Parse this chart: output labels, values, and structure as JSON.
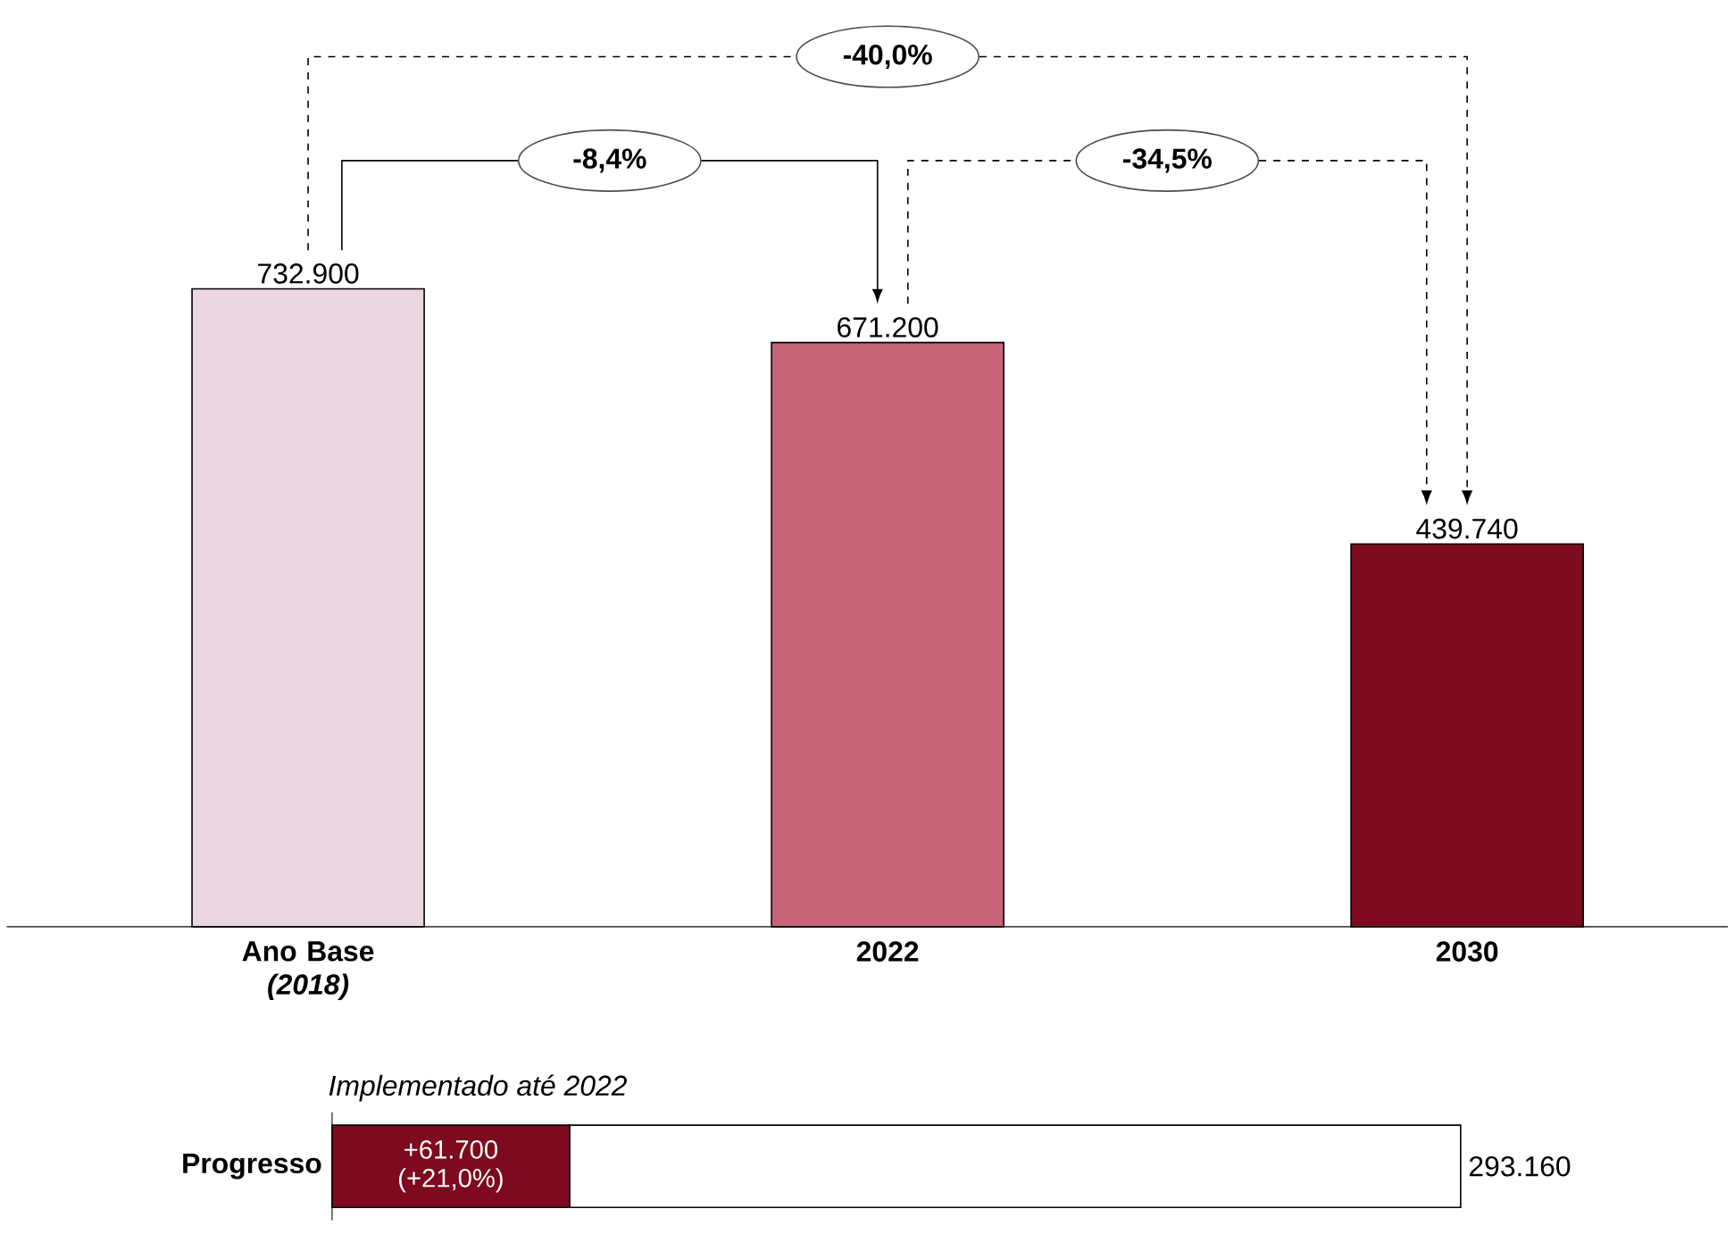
{
  "chart_data": [
    {
      "type": "bar",
      "categories": [
        "Ano Base *(2018)*",
        "2022",
        "2030"
      ],
      "values": [
        732900,
        671200,
        439740
      ],
      "colors": [
        "#ead5e0",
        "#c76478",
        "#7d0a1e"
      ],
      "value_labels": [
        "732.900",
        "671.200",
        "439.740"
      ],
      "tick_labels": "x",
      "annotations": [
        "-8,4%",
        "-34,5%",
        "-40,0%"
      ]
    },
    {
      "type": "bar",
      "orientation": "horizontal",
      "stacked": true,
      "categories": [
        "Progresso"
      ],
      "series": [
        {
          "color": "#7d0a1e",
          "values": [
            61700
          ],
          "value_labels": [
            "+61.700 (+21,0%)"
          ]
        },
        {
          "color": "#ffffff",
          "values": [
            231460
          ]
        }
      ],
      "totals": [
        "293.160"
      ],
      "tick_labels": "y",
      "annotations": [
        "Implementado até 2022"
      ]
    }
  ]
}
